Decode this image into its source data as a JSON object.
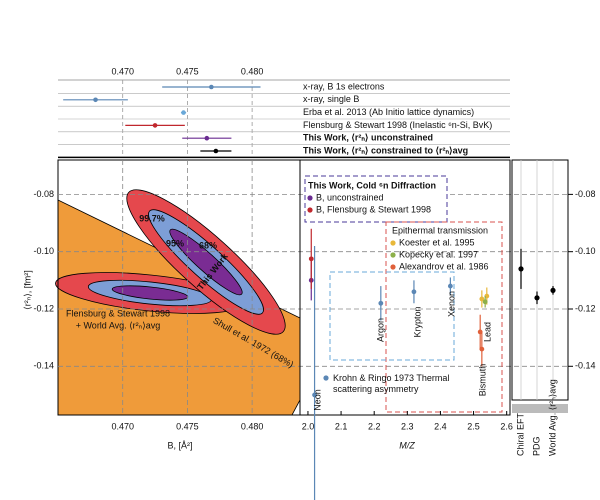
{
  "chart_data": [
    {
      "type": "errorbar-h",
      "categories": [
        "x-ray, B 1s electrons",
        "x-ray, single B",
        "Erba et al. 2013 (Ab Initio lattice dynamics)",
        "Flensburg & Stewart 1998 (Inelastic ⁶n-Si, BvK)",
        "This Work, ⟨r²ₙ⟩ unconstrained",
        "This Work, ⟨r²ₙ⟩ constrained to ⟨r²ₙ⟩avg"
      ],
      "values": [
        0.47685,
        0.4679,
        0.4747,
        0.4725,
        0.4765,
        0.4772
      ],
      "errors": [
        0.0038,
        0.0025,
        0.0002,
        0.0023,
        0.0019,
        0.0012
      ],
      "colors": [
        "#5b87b5",
        "#5b87b5",
        "#6aa8d8",
        "#c0272d",
        "#6a2c91",
        "#000000"
      ],
      "xlim": [
        0.465,
        0.4837
      ],
      "xticks": [
        {
          "value": 0.47,
          "label": "0.470"
        },
        {
          "value": 0.475,
          "label": "0.475"
        },
        {
          "value": 0.48,
          "label": "0.480"
        }
      ],
      "grid": true
    },
    {
      "type": "contour",
      "xlabel": "B, [Å²]",
      "ylabel": "⟨r²ₙ⟩, [fm²]",
      "xlim": [
        0.465,
        0.4837
      ],
      "ylim": [
        -0.157,
        -0.068
      ],
      "xticks": [
        {
          "value": 0.47,
          "label": "0.470"
        },
        {
          "value": 0.475,
          "label": "0.475"
        },
        {
          "value": 0.48,
          "label": "0.480"
        }
      ],
      "yticks": [
        -0.08,
        {
          "value": -0.1,
          "label": "-0.10"
        },
        -0.12,
        -0.14
      ],
      "grid": true,
      "annotations": [
        "99.7%",
        "95%",
        "68%",
        "This Work",
        "Flensburg & Stewart 1998",
        "+ World Avg. ⟨r²ₙ⟩avg",
        "Shull et al. 1972 (68%)"
      ]
    },
    {
      "type": "scatter",
      "xlabel": "M/Z",
      "xlim": [
        1.976,
        2.61
      ],
      "ylim": [
        -0.157,
        -0.068
      ],
      "xticks": [
        {
          "value": 2,
          "label": "2.0"
        },
        2.1,
        2.2,
        2.3,
        2.4,
        2.5,
        2.6
      ],
      "legend_title": "This Work, Cold ⁶n Diffraction",
      "group_title": "Epithermal transmission",
      "series": [
        {
          "name": "B, unconstrained",
          "color": "#6a2c91",
          "x": [
            2.01
          ],
          "y": [
            -0.11
          ],
          "errors": [
            0.007
          ]
        },
        {
          "name": "B, Flensburg & Stewart 1998",
          "color": "#c0272d",
          "x": [
            2.01
          ],
          "y": [
            -0.1025
          ],
          "errors": [
            0.0105
          ]
        },
        {
          "name": "Krohn & Ringo 1973 Thermal scattering asymmetry",
          "color": "#5b87b5",
          "x": [
            2.02,
            2.22,
            2.32,
            2.43
          ],
          "y": [
            -0.15,
            -0.118,
            -0.114,
            -0.112
          ],
          "errors": [
            0.052,
            0.006,
            0.004,
            0.003
          ]
        },
        {
          "name": "Koester et al. 1995",
          "color": "#e8b83a",
          "x": [
            2.525,
            2.54
          ],
          "y": [
            -0.1165,
            -0.1155
          ],
          "errors": [
            0.003,
            0.003
          ]
        },
        {
          "name": "Kopecky et al. 1997",
          "color": "#8db04a",
          "x": [
            2.535
          ],
          "y": [
            -0.1175
          ],
          "errors": [
            0.002
          ]
        },
        {
          "name": "Alexandrov et al. 1986",
          "color": "#e0603a",
          "x": [
            2.525,
            2.52
          ],
          "y": [
            -0.134,
            -0.128
          ],
          "errors": [
            0.006,
            0.006
          ]
        }
      ],
      "element_labels": [
        "Neon",
        "Argon",
        "Krypton",
        "Xenon",
        "Bismuth",
        "Lead"
      ]
    },
    {
      "type": "errorbar-cat",
      "categories": [
        "Chiral EFT",
        "PDG",
        "World Avg. ⟨r²ₙ⟩avg"
      ],
      "values": [
        -0.106,
        -0.1161,
        -0.1135
      ],
      "errors": [
        0.007,
        0.0022,
        0.0015
      ],
      "color": "#000000",
      "ylim": [
        -0.157,
        -0.068
      ],
      "yticks": [
        -0.08,
        {
          "value": -0.1,
          "label": "-0.10"
        },
        -0.12,
        -0.14
      ]
    }
  ]
}
